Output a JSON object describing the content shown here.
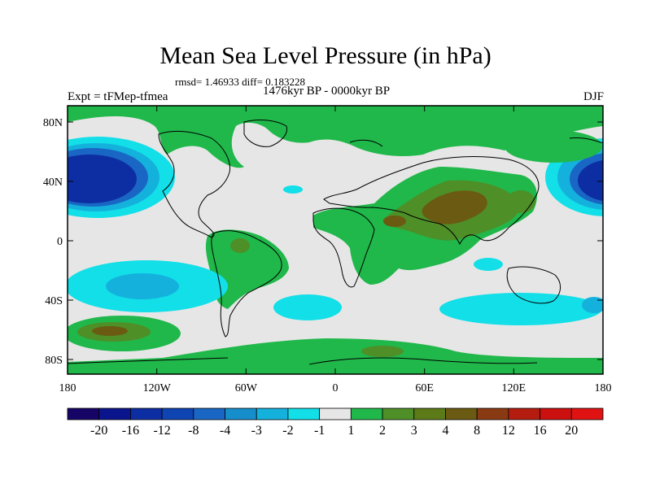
{
  "title": "Mean Sea Level Pressure (in hPa)",
  "subtitle": "rmsd= 1.46933 diff= 0.183228",
  "left_string": "Expt = tFMep-tfmea",
  "center_string": "1476kyr BP - 0000kyr BP",
  "right_string": "DJF",
  "map": {
    "lat_labels": [
      "80N",
      "40N",
      "0",
      "40S",
      "80S"
    ],
    "lon_labels": [
      "180",
      "120W",
      "60W",
      "0",
      "60E",
      "120E",
      "180"
    ]
  },
  "colorbar": {
    "labels": [
      "-20",
      "-16",
      "-12",
      "-8",
      "-4",
      "-3",
      "-2",
      "-1",
      "1",
      "2",
      "3",
      "4",
      "8",
      "12",
      "16",
      "20"
    ],
    "colors": [
      "#160566",
      "#0a158d",
      "#0d2ea3",
      "#0f44b3",
      "#1a66c4",
      "#168ecc",
      "#14b1dc",
      "#12dfe8",
      "#e6e6e6",
      "#20b84a",
      "#4e8f28",
      "#5c7a18",
      "#6a5a12",
      "#8a3a12",
      "#b51c10",
      "#cc1010",
      "#e01212"
    ]
  },
  "colors": {
    "background": "#e6e6e6",
    "green": "#20b84a",
    "olive": "#4e8f28",
    "brown": "#6a5a12",
    "cyan": "#12dfe8",
    "lightblue": "#14b1dc",
    "blue": "#1a66c4",
    "darkblue": "#0d2ea3"
  }
}
